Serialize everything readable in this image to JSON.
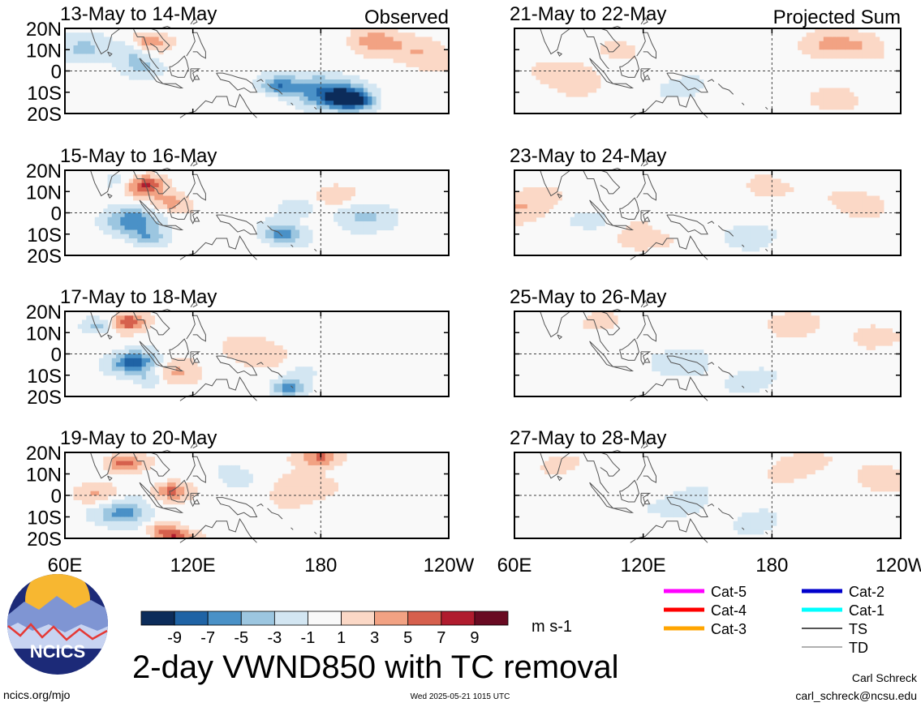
{
  "title": "2-day VWND850 with TC removal",
  "columns": {
    "left": "Observed",
    "right": "Projected Sum"
  },
  "panels": [
    {
      "label": "13-May to 14-May",
      "column": "left",
      "row": 0
    },
    {
      "label": "15-May to 16-May",
      "column": "left",
      "row": 1
    },
    {
      "label": "17-May to 18-May",
      "column": "left",
      "row": 2
    },
    {
      "label": "19-May to 20-May",
      "column": "left",
      "row": 3
    },
    {
      "label": "21-May to 22-May",
      "column": "right",
      "row": 0
    },
    {
      "label": "23-May to 24-May",
      "column": "right",
      "row": 1
    },
    {
      "label": "25-May to 26-May",
      "column": "right",
      "row": 2
    },
    {
      "label": "27-May to 28-May",
      "column": "right",
      "row": 3
    }
  ],
  "axes": {
    "y_ticks": [
      "20N",
      "10N",
      "0",
      "10S",
      "20S"
    ],
    "y_values": [
      20,
      10,
      0,
      -10,
      -20
    ],
    "x_ticks_left": [
      "60E",
      "120E",
      "180",
      "120W"
    ],
    "x_ticks_right": [
      "60E",
      "120E",
      "180",
      "120W"
    ],
    "x_values": [
      60,
      120,
      180,
      240
    ],
    "lon_range": [
      60,
      240
    ],
    "lat_range": [
      -20,
      20
    ]
  },
  "colorbar": {
    "labels": [
      "-9",
      "-7",
      "-5",
      "-3",
      "-1",
      "1",
      "3",
      "5",
      "7",
      "9"
    ],
    "colors": [
      "#0c2c5a",
      "#1f63a5",
      "#4a91c7",
      "#9cc6e0",
      "#d3e6f2",
      "#f9f9f9",
      "#fbd8c6",
      "#f2a283",
      "#d6604d",
      "#b01c2e",
      "#690b22"
    ],
    "units": "m s-1"
  },
  "legend": [
    {
      "label": "Cat-5",
      "color": "#ff00ff"
    },
    {
      "label": "Cat-4",
      "color": "#ff0000"
    },
    {
      "label": "Cat-3",
      "color": "#ffa500"
    },
    {
      "label": "Cat-2",
      "color": "#0000cc"
    },
    {
      "label": "Cat-1",
      "color": "#00ffff"
    },
    {
      "label": "TS",
      "color": "#555555"
    },
    {
      "label": "TD",
      "color": "#b0b0b0"
    }
  ],
  "logo_text": "NCICS",
  "footer": {
    "left": "ncics.org/mjo",
    "center": "Wed 2025-05-21 1015 UTC",
    "author": "Carl Schreck",
    "email": "carl_schreck@ncsu.edu"
  },
  "chart_data": {
    "type": "heatmap",
    "variable": "VWND850",
    "units": "m s-1",
    "levels": [
      -9,
      -7,
      -5,
      -3,
      -1,
      1,
      3,
      5,
      7,
      9
    ],
    "anomaly_features": [
      {
        "panel": "13-May to 14-May",
        "features": [
          [
            68,
            10,
            1.2,
            -3
          ],
          [
            93,
            10,
            0.8,
            -4
          ],
          [
            99,
            13,
            0.8,
            5
          ],
          [
            95,
            2,
            0.8,
            -3
          ],
          [
            180,
            -9,
            1.3,
            -6
          ],
          [
            192,
            -13,
            0.9,
            -8
          ],
          [
            160,
            -7,
            0.7,
            -6
          ],
          [
            198,
            -14,
            0.7,
            -4
          ],
          [
            205,
            14,
            1.0,
            4
          ],
          [
            228,
            8,
            1.2,
            3
          ]
        ]
      },
      {
        "panel": "15-May to 16-May",
        "features": [
          [
            97,
            13,
            0.8,
            8
          ],
          [
            88,
            14,
            0.8,
            -3
          ],
          [
            92,
            -4,
            1.1,
            -6
          ],
          [
            99,
            -12,
            0.7,
            -4
          ],
          [
            162,
            -10,
            0.8,
            -6
          ],
          [
            170,
            2,
            1.0,
            -2
          ],
          [
            200,
            -2,
            1.2,
            -3
          ],
          [
            185,
            8,
            0.9,
            3
          ],
          [
            110,
            5,
            0.8,
            4
          ]
        ]
      },
      {
        "panel": "17-May to 18-May",
        "features": [
          [
            75,
            13,
            0.6,
            -4
          ],
          [
            90,
            15,
            0.7,
            7
          ],
          [
            93,
            -4,
            0.9,
            -8
          ],
          [
            100,
            -12,
            0.6,
            -3
          ],
          [
            165,
            -16,
            0.6,
            -6
          ],
          [
            150,
            0,
            1.2,
            3
          ],
          [
            112,
            -9,
            1.0,
            3
          ],
          [
            170,
            -8,
            0.9,
            -2
          ]
        ]
      },
      {
        "panel": "19-May to 20-May",
        "features": [
          [
            88,
            15,
            0.7,
            6
          ],
          [
            110,
            2,
            0.7,
            6
          ],
          [
            88,
            -8,
            1.0,
            -6
          ],
          [
            105,
            -16,
            0.6,
            4
          ],
          [
            112,
            -20,
            0.7,
            7
          ],
          [
            180,
            18,
            0.8,
            6
          ],
          [
            168,
            3,
            1.2,
            3
          ],
          [
            140,
            8,
            1.0,
            -2
          ],
          [
            75,
            0,
            0.8,
            3
          ]
        ]
      },
      {
        "panel": "21-May to 22-May",
        "features": [
          [
            86,
            -2,
            1.2,
            3
          ],
          [
            208,
            12,
            1.2,
            3
          ],
          [
            225,
            12,
            1.0,
            2
          ],
          [
            140,
            -8,
            1.0,
            -2
          ],
          [
            210,
            -14,
            1.0,
            2
          ],
          [
            110,
            10,
            0.8,
            2
          ]
        ]
      },
      {
        "panel": "23-May to 24-May",
        "features": [
          [
            64,
            4,
            1.3,
            3
          ],
          [
            115,
            -12,
            1.4,
            2
          ],
          [
            170,
            -10,
            1.1,
            -2
          ],
          [
            220,
            6,
            1.2,
            2
          ],
          [
            175,
            12,
            1.1,
            2
          ],
          [
            98,
            -4,
            1.0,
            -2
          ]
        ]
      },
      {
        "panel": "25-May to 26-May",
        "features": [
          [
            190,
            16,
            1.2,
            2
          ],
          [
            225,
            8,
            1.1,
            2
          ],
          [
            140,
            -4,
            1.3,
            -2
          ],
          [
            172,
            -12,
            1.0,
            -2
          ],
          [
            100,
            14,
            0.8,
            2
          ]
        ]
      },
      {
        "panel": "27-May to 28-May",
        "features": [
          [
            190,
            14,
            1.2,
            2
          ],
          [
            230,
            9,
            1.1,
            2
          ],
          [
            140,
            -4,
            1.2,
            -2
          ],
          [
            172,
            -14,
            1.0,
            -2
          ],
          [
            80,
            14,
            0.8,
            2
          ]
        ]
      }
    ]
  }
}
